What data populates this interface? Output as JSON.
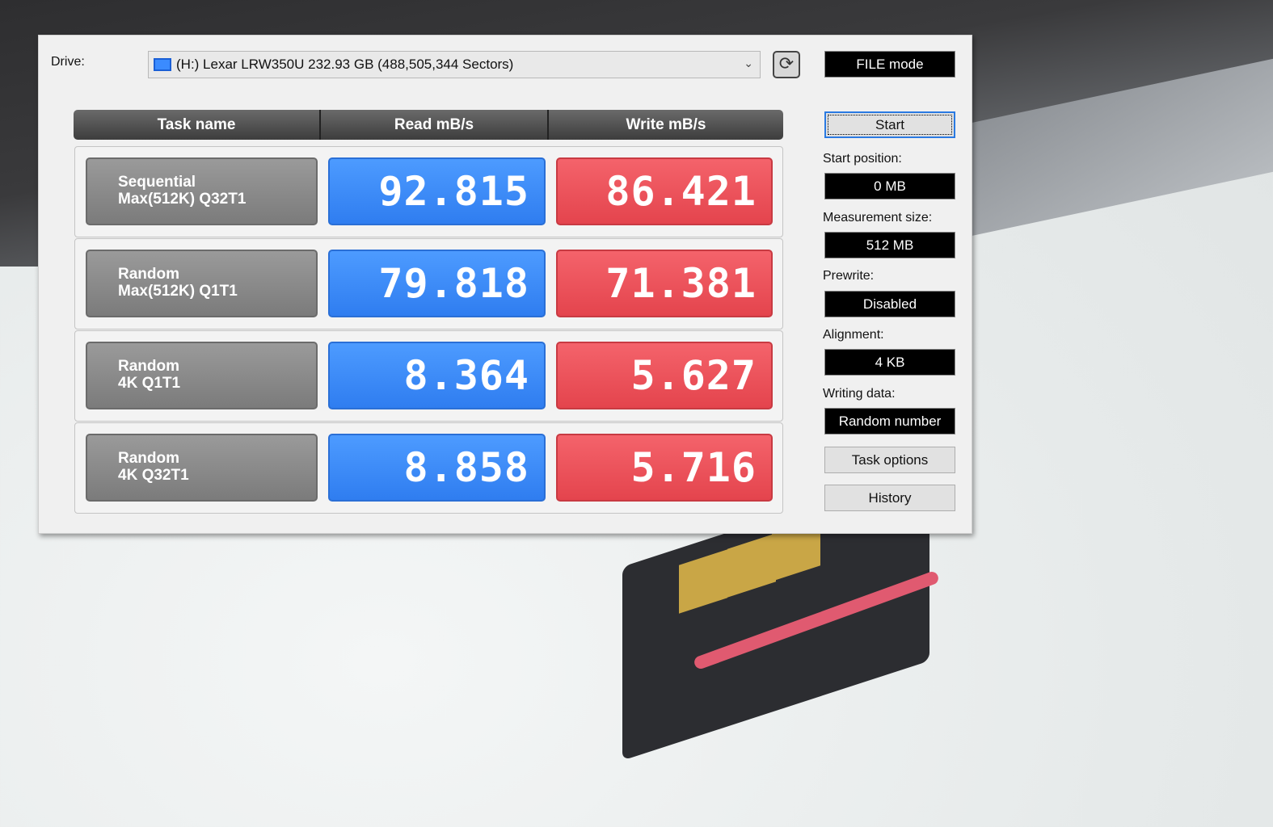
{
  "drive": {
    "label": "Drive:",
    "value": "(H:) Lexar LRW350U  232.93 GB (488,505,344 Sectors)"
  },
  "mode": "FILE mode",
  "columns": [
    "Task name",
    "Read mB/s",
    "Write mB/s"
  ],
  "rows": [
    {
      "line1": "Sequential",
      "line2": "Max(512K) Q32T1",
      "read": "92.815",
      "write": "86.421"
    },
    {
      "line1": "Random",
      "line2": "Max(512K) Q1T1",
      "read": "79.818",
      "write": "71.381"
    },
    {
      "line1": "Random",
      "line2": "4K Q1T1",
      "read": "8.364",
      "write": "5.627"
    },
    {
      "line1": "Random",
      "line2": "4K Q32T1",
      "read": "8.858",
      "write": "5.716"
    }
  ],
  "side": {
    "start": "Start",
    "start_position_label": "Start position:",
    "start_position": "0 MB",
    "measurement_label": "Measurement size:",
    "measurement": "512 MB",
    "prewrite_label": "Prewrite:",
    "prewrite": "Disabled",
    "alignment_label": "Alignment:",
    "alignment": "4 KB",
    "writing_label": "Writing data:",
    "writing": "Random number",
    "task_options": "Task options",
    "history": "History"
  },
  "colors": {
    "read": "#3a88f8",
    "write": "#ec545c"
  }
}
